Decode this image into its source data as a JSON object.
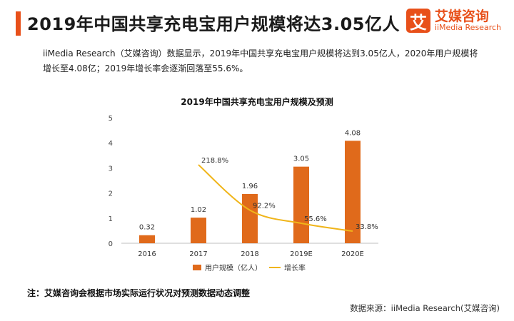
{
  "header": {
    "title": "2019年中国共享充电宝用户规模将达3.05亿人",
    "logo_mark": "艾",
    "logo_cn": "艾媒咨询",
    "logo_en": "iiMedia Research"
  },
  "intro_lines": [
    "iiMedia Research（艾媒咨询）数据显示，2019年中国共享充电宝用户规模将达到3.05亿人，2020年用户规模将",
    "增长至4.08亿；2019年增长率会逐渐回落至55.6%。"
  ],
  "chart_data": {
    "type": "bar",
    "title": "2019年中国共享充电宝用户规模及预测",
    "categories": [
      "2016",
      "2017",
      "2018",
      "2019E",
      "2020E"
    ],
    "series": [
      {
        "name": "用户规模（亿人）",
        "kind": "bar",
        "values": [
          0.32,
          1.02,
          1.96,
          3.05,
          4.08
        ],
        "labels": [
          "0.32",
          "1.02",
          "1.96",
          "3.05",
          "4.08"
        ],
        "color": "#e06a1b"
      },
      {
        "name": "增长率",
        "kind": "line",
        "values": [
          null,
          218.8,
          92.2,
          55.6,
          33.8
        ],
        "labels": [
          "",
          "218.8%",
          "92.2%",
          "55.6%",
          "33.8%"
        ],
        "color": "#f0b51a"
      }
    ],
    "y_ticks": [
      "0",
      "1",
      "2",
      "3",
      "4",
      "5"
    ],
    "ylim": [
      0,
      5
    ],
    "y2lim": [
      0,
      350
    ],
    "grid": false,
    "legend_position": "bottom"
  },
  "footnote": "注：艾媒咨询会根据市场实际运行状况对预测数据动态调整",
  "source": "数据来源：iiMedia Research(艾媒咨询)"
}
